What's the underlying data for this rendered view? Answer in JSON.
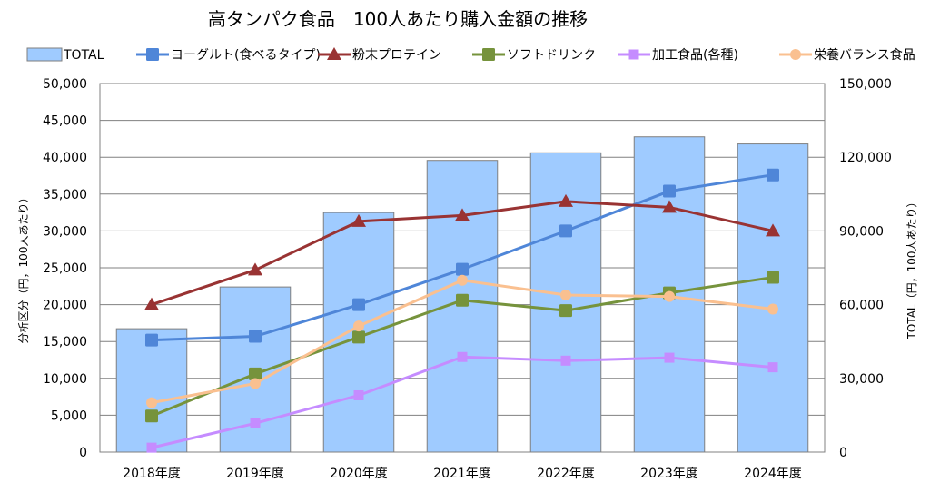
{
  "chart_data": {
    "type": "bar+line",
    "title": "高タンパク食品　100人あたり購入金額の推移",
    "categories": [
      "2018年度",
      "2019年度",
      "2020年度",
      "2021年度",
      "2022年度",
      "2023年度",
      "2024年度"
    ],
    "left_axis": {
      "label": "分析区分（円，100人あたり）",
      "range": [
        0,
        50000
      ],
      "ticks": [
        "0",
        "5,000",
        "10,000",
        "15,000",
        "20,000",
        "25,000",
        "30,000",
        "35,000",
        "40,000",
        "45,000",
        "50,000"
      ]
    },
    "right_axis": {
      "label": "TOTAL（円，100人あたり）",
      "range": [
        0,
        150000
      ],
      "ticks": [
        "0",
        "30,000",
        "60,000",
        "90,000",
        "120,000",
        "150,000"
      ]
    },
    "bars": {
      "name": "TOTAL",
      "axis": "right",
      "color": "#9fcbff",
      "values": [
        50200,
        67200,
        97500,
        118700,
        121800,
        128300,
        125400
      ]
    },
    "series": [
      {
        "name": "ヨーグルト(食べるタイプ)",
        "color": "#4f86d8",
        "marker": "square",
        "values": [
          15200,
          15700,
          20000,
          24800,
          30000,
          35400,
          37600
        ]
      },
      {
        "name": "粉末プロテイン",
        "color": "#993333",
        "marker": "triangle",
        "values": [
          20000,
          24700,
          31300,
          32100,
          34000,
          33200,
          30000
        ]
      },
      {
        "name": "ソフトドリンク",
        "color": "#76933c",
        "marker": "square",
        "values": [
          4900,
          10600,
          15600,
          20600,
          19200,
          21600,
          23700
        ]
      },
      {
        "name": "加工食品(各種)",
        "color": "#c58cff",
        "marker": "square-small",
        "values": [
          600,
          3900,
          7700,
          12900,
          12400,
          12800,
          11500
        ]
      },
      {
        "name": "栄養バランス食品",
        "color": "#fac090",
        "marker": "circle",
        "values": [
          6700,
          9300,
          17100,
          23300,
          21300,
          21100,
          19400
        ]
      }
    ],
    "legend_position": "top",
    "grid": true
  }
}
